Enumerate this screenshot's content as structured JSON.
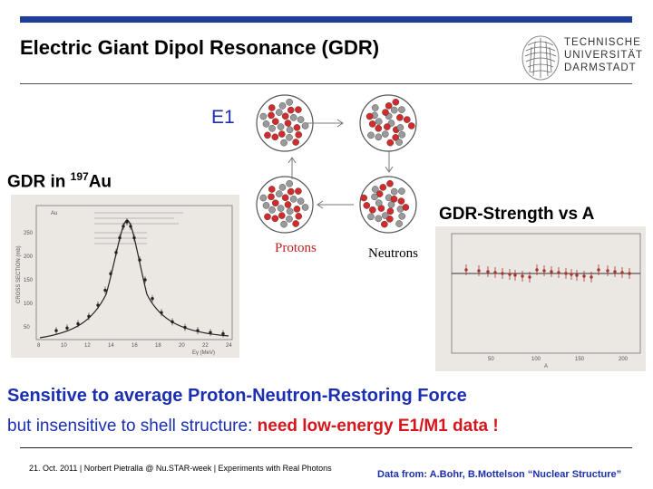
{
  "slide": {
    "title": "Electric Giant Dipol Resonance (GDR)",
    "logo_text": "TECHNISCHE\nUNIVERSITÄT\nDARMSTADT",
    "e1_label": "E1",
    "gdr_label": "GDR in ",
    "gdr_isotope_mass": "197",
    "gdr_isotope_element": "Au",
    "protons_label": "Protons",
    "neutrons_label": "Neutrons",
    "strength_label": "GDR-Strength vs A",
    "line1": "Sensitive to average Proton-Neutron-Restoring Force",
    "line2_prefix": "but insensitive to shell structure: ",
    "line2_highlight": "need low-energy E1/M1 data !",
    "footer": "21. Oct. 2011 | Norbert Pietralla @ Nu.STAR-week | Experiments with Real Photons",
    "data_source": "Data from: A.Bohr, B.Mottelson “Nuclear Structure”"
  },
  "colors": {
    "accent_blue": "#1b2fb0",
    "bar_blue": "#1f3f96",
    "highlight_red": "#d4171c",
    "proton_red": "#d32b2b",
    "neutron_gray": "#9a9a9a"
  },
  "left_plot": {
    "y_label": "CROSS SECTION (mb)",
    "x_label": "Eγ (MeV)",
    "x_ticks": [
      "8",
      "10",
      "12",
      "14",
      "16",
      "18",
      "20",
      "22",
      "24"
    ],
    "y_ticks": [
      "50",
      "100",
      "150",
      "200",
      "250"
    ],
    "series_label": "Au"
  },
  "right_plot": {
    "x_label": "A",
    "x_ticks": [
      "50",
      "100",
      "150",
      "200"
    ]
  }
}
